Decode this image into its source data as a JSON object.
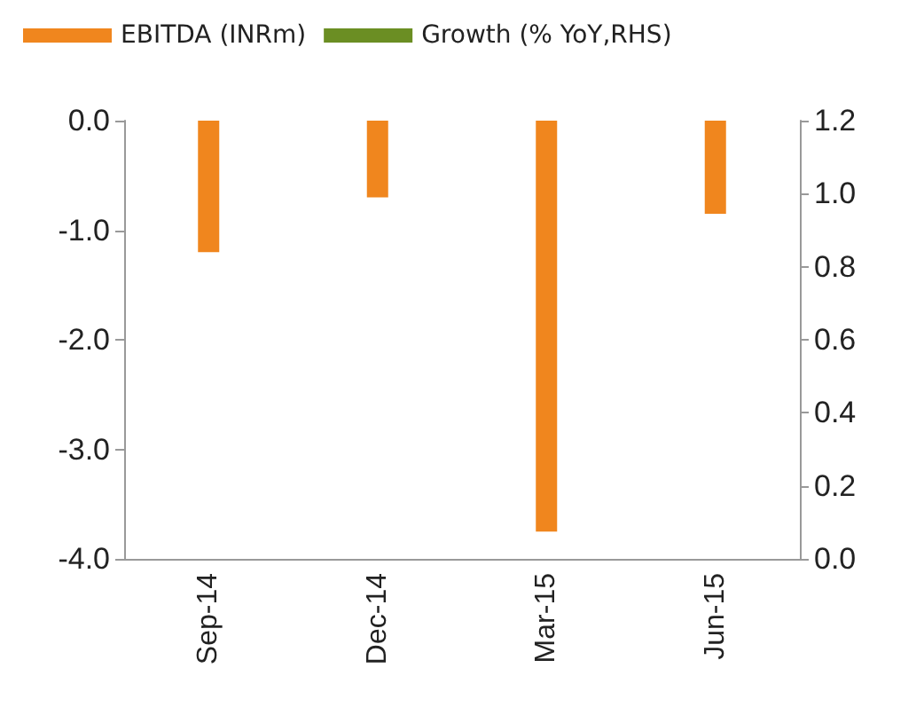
{
  "chart_data": {
    "type": "bar",
    "categories": [
      "Sep-14",
      "Dec-14",
      "Mar-15",
      "Jun-15"
    ],
    "series": [
      {
        "name": "EBITDA (INRm)",
        "color": "#f0861e",
        "values": [
          -1.2,
          -0.7,
          -3.75,
          -0.85
        ]
      },
      {
        "name": "Growth (% YoY,RHS)",
        "type": "line",
        "axis": "y2",
        "color": "#6b8e23",
        "values": [
          null,
          null,
          null,
          null
        ]
      }
    ],
    "ylim": [
      -4,
      0
    ],
    "yticks": [
      {
        "value": 0,
        "label": "0.0"
      },
      {
        "value": -1,
        "label": "-1.0"
      },
      {
        "value": -2,
        "label": "-2.0"
      },
      {
        "value": -3,
        "label": "-3.0"
      },
      {
        "value": -4,
        "label": "-4.0"
      }
    ],
    "y2lim": [
      0,
      1.2
    ],
    "y2ticks": [
      1.2,
      {
        "value": 1,
        "label": "1.0"
      },
      0.8,
      0.6,
      0.4,
      0.2,
      {
        "value": 0,
        "label": "0.0"
      }
    ],
    "grid": false,
    "legend": "top"
  }
}
